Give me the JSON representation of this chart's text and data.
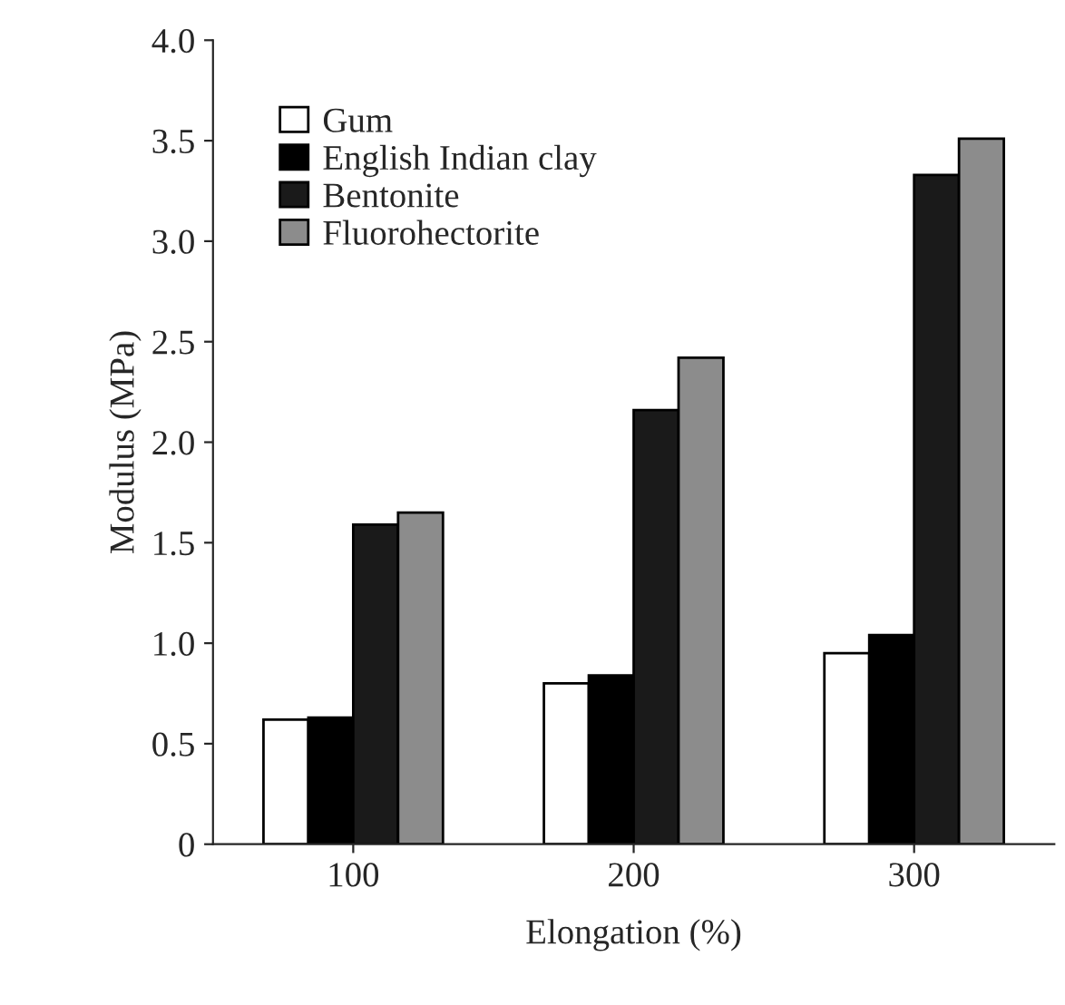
{
  "chart_data": {
    "type": "bar",
    "xlabel": "Elongation (%)",
    "ylabel": "Modulus (MPa)",
    "categories": [
      "100",
      "200",
      "300"
    ],
    "series": [
      {
        "name": "Gum",
        "color": "#ffffff",
        "values": [
          0.62,
          0.8,
          0.95
        ]
      },
      {
        "name": "English Indian clay",
        "color": "#000000",
        "values": [
          0.63,
          0.84,
          1.04
        ]
      },
      {
        "name": "Bentonite",
        "color": "#1a1a1a",
        "values": [
          1.59,
          2.16,
          3.33
        ]
      },
      {
        "name": "Fluorohectorite",
        "color": "#8c8c8c",
        "values": [
          1.65,
          2.42,
          3.51
        ]
      }
    ],
    "ylim": [
      0,
      4.0
    ],
    "yticks": [
      {
        "value": 0,
        "label": "0"
      },
      {
        "value": 0.5,
        "label": "0.5"
      },
      {
        "value": 1.0,
        "label": "1.0"
      },
      {
        "value": 1.5,
        "label": "1.5"
      },
      {
        "value": 2.0,
        "label": "2.0"
      },
      {
        "value": 2.5,
        "label": "2.5"
      },
      {
        "value": 3.0,
        "label": "3.0"
      },
      {
        "value": 3.5,
        "label": "3.5"
      },
      {
        "value": 4.0,
        "label": "4.0"
      }
    ],
    "grid": false,
    "legend": "top left"
  }
}
